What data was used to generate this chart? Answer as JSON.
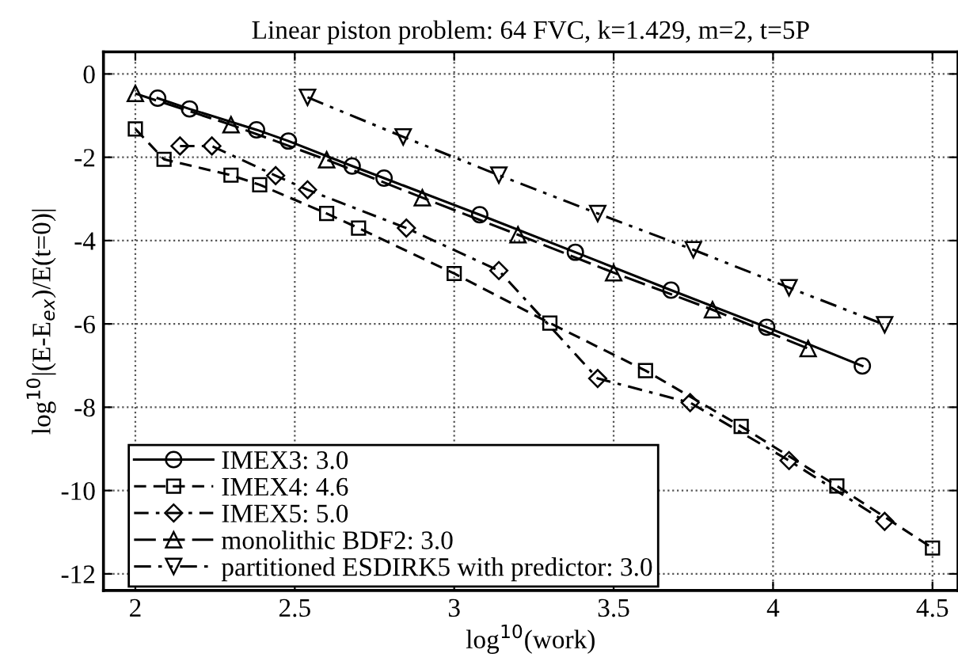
{
  "chart_data": {
    "type": "line",
    "title": "Linear piston problem: 64 FVC, k=1.429, m=2, t=5P",
    "xlabel": "log$^{10}$(work)",
    "ylabel": "log$^{10}$|(E-E$_{ex}$)/E(t=0)|",
    "xlim": [
      1.9,
      4.58
    ],
    "ylim": [
      -12.4,
      0.53
    ],
    "xticks": [
      2,
      2.5,
      3,
      3.5,
      4,
      4.5
    ],
    "yticks": [
      0,
      -2,
      -4,
      -6,
      -8,
      -10,
      -12
    ],
    "grid": true,
    "legend": "bottom left",
    "series": [
      {
        "name": "IMEX3: 3.0",
        "color": "#000000",
        "marker": "circle",
        "line_style": "solid",
        "x": [
          2.07,
          2.17,
          2.38,
          2.48,
          2.68,
          2.78,
          3.08,
          3.38,
          3.68,
          3.98,
          4.28
        ],
        "values": [
          -0.58,
          -0.84,
          -1.34,
          -1.61,
          -2.21,
          -2.5,
          -3.38,
          -4.28,
          -5.19,
          -6.08,
          -7.01
        ]
      },
      {
        "name": "IMEX4: 4.6",
        "color": "#000000",
        "marker": "square",
        "line_style": "dashed",
        "x": [
          2.0,
          2.09,
          2.3,
          2.39,
          2.6,
          2.7,
          3.0,
          3.3,
          3.6,
          3.9,
          4.2,
          4.5
        ],
        "values": [
          -1.32,
          -2.05,
          -2.43,
          -2.66,
          -3.35,
          -3.7,
          -4.79,
          -5.98,
          -7.12,
          -8.46,
          -9.89,
          -11.38
        ]
      },
      {
        "name": "IMEX5: 5.0",
        "color": "#000000",
        "marker": "diamond",
        "line_style": "dashdot",
        "x": [
          2.14,
          2.24,
          2.44,
          2.54,
          2.85,
          3.14,
          3.45,
          3.74,
          4.05,
          4.35
        ],
        "values": [
          -1.73,
          -1.73,
          -2.44,
          -2.78,
          -3.7,
          -4.72,
          -7.31,
          -7.89,
          -9.28,
          -10.74
        ]
      },
      {
        "name": "monolithic BDF2: 3.0",
        "color": "#000000",
        "marker": "triangle",
        "line_style": "longdash",
        "x": [
          2.0,
          2.3,
          2.6,
          2.9,
          3.2,
          3.5,
          3.81,
          4.11
        ],
        "values": [
          -0.47,
          -1.22,
          -2.06,
          -2.97,
          -3.86,
          -4.77,
          -5.66,
          -6.59
        ]
      },
      {
        "name": "partitioned ESDIRK5 with predictor: 3.0",
        "color": "#000000",
        "marker": "triangle_down",
        "line_style": "dashdotdot",
        "x": [
          2.54,
          2.84,
          3.14,
          3.45,
          3.75,
          4.05,
          4.35
        ],
        "values": [
          -0.56,
          -1.51,
          -2.43,
          -3.35,
          -4.22,
          -5.13,
          -6.02
        ]
      }
    ]
  }
}
